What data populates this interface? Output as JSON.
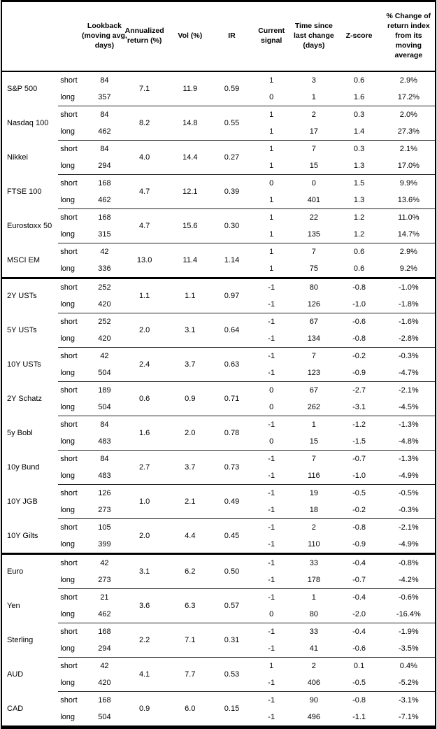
{
  "colors": {
    "background": "#ffffff",
    "text": "#000000",
    "border": "#000000",
    "thin_line": "#222222"
  },
  "table": {
    "columns": {
      "asset": "",
      "side": "",
      "lookback": "Lookback (moving avg, days)",
      "annualized_return": "Annualized return (%)",
      "vol": "Vol (%)",
      "ir": "IR",
      "current_signal": "Current signal",
      "time_since": "Time since last change (days)",
      "z_score": "Z-score",
      "pct_change": "% Change of return index from its moving average"
    },
    "groups": [
      {
        "assets": [
          {
            "name": "S&P 500",
            "annualized_return": "7.1",
            "vol": "11.9",
            "ir": "0.59",
            "rows": [
              {
                "side": "short",
                "lookback": "84",
                "signal": "1",
                "time_since": "3",
                "z_score": "0.6",
                "pct_change": "2.9%"
              },
              {
                "side": "long",
                "lookback": "357",
                "signal": "0",
                "time_since": "1",
                "z_score": "1.6",
                "pct_change": "17.2%"
              }
            ]
          },
          {
            "name": "Nasdaq 100",
            "annualized_return": "8.2",
            "vol": "14.8",
            "ir": "0.55",
            "rows": [
              {
                "side": "short",
                "lookback": "84",
                "signal": "1",
                "time_since": "2",
                "z_score": "0.3",
                "pct_change": "2.0%"
              },
              {
                "side": "long",
                "lookback": "462",
                "signal": "1",
                "time_since": "17",
                "z_score": "1.4",
                "pct_change": "27.3%"
              }
            ]
          },
          {
            "name": "Nikkei",
            "annualized_return": "4.0",
            "vol": "14.4",
            "ir": "0.27",
            "rows": [
              {
                "side": "short",
                "lookback": "84",
                "signal": "1",
                "time_since": "7",
                "z_score": "0.3",
                "pct_change": "2.1%"
              },
              {
                "side": "long",
                "lookback": "294",
                "signal": "1",
                "time_since": "15",
                "z_score": "1.3",
                "pct_change": "17.0%"
              }
            ]
          },
          {
            "name": "FTSE 100",
            "annualized_return": "4.7",
            "vol": "12.1",
            "ir": "0.39",
            "rows": [
              {
                "side": "short",
                "lookback": "168",
                "signal": "0",
                "time_since": "0",
                "z_score": "1.5",
                "pct_change": "9.9%"
              },
              {
                "side": "long",
                "lookback": "462",
                "signal": "1",
                "time_since": "401",
                "z_score": "1.3",
                "pct_change": "13.6%"
              }
            ]
          },
          {
            "name": "Eurostoxx 50",
            "annualized_return": "4.7",
            "vol": "15.6",
            "ir": "0.30",
            "rows": [
              {
                "side": "short",
                "lookback": "168",
                "signal": "1",
                "time_since": "22",
                "z_score": "1.2",
                "pct_change": "11.0%"
              },
              {
                "side": "long",
                "lookback": "315",
                "signal": "1",
                "time_since": "135",
                "z_score": "1.2",
                "pct_change": "14.7%"
              }
            ]
          },
          {
            "name": "MSCI EM",
            "annualized_return": "13.0",
            "vol": "11.4",
            "ir": "1.14",
            "rows": [
              {
                "side": "short",
                "lookback": "42",
                "signal": "1",
                "time_since": "7",
                "z_score": "0.6",
                "pct_change": "2.9%"
              },
              {
                "side": "long",
                "lookback": "336",
                "signal": "1",
                "time_since": "75",
                "z_score": "0.6",
                "pct_change": "9.2%"
              }
            ]
          }
        ]
      },
      {
        "assets": [
          {
            "name": "2Y USTs",
            "annualized_return": "1.1",
            "vol": "1.1",
            "ir": "0.97",
            "rows": [
              {
                "side": "short",
                "lookback": "252",
                "signal": "-1",
                "time_since": "80",
                "z_score": "-0.8",
                "pct_change": "-1.0%"
              },
              {
                "side": "long",
                "lookback": "420",
                "signal": "-1",
                "time_since": "126",
                "z_score": "-1.0",
                "pct_change": "-1.8%"
              }
            ]
          },
          {
            "name": "5Y USTs",
            "annualized_return": "2.0",
            "vol": "3.1",
            "ir": "0.64",
            "rows": [
              {
                "side": "short",
                "lookback": "252",
                "signal": "-1",
                "time_since": "67",
                "z_score": "-0.6",
                "pct_change": "-1.6%"
              },
              {
                "side": "long",
                "lookback": "420",
                "signal": "-1",
                "time_since": "134",
                "z_score": "-0.8",
                "pct_change": "-2.8%"
              }
            ]
          },
          {
            "name": "10Y USTs",
            "annualized_return": "2.4",
            "vol": "3.7",
            "ir": "0.63",
            "rows": [
              {
                "side": "short",
                "lookback": "42",
                "signal": "-1",
                "time_since": "7",
                "z_score": "-0.2",
                "pct_change": "-0.3%"
              },
              {
                "side": "long",
                "lookback": "504",
                "signal": "-1",
                "time_since": "123",
                "z_score": "-0.9",
                "pct_change": "-4.7%"
              }
            ]
          },
          {
            "name": "2Y Schatz",
            "annualized_return": "0.6",
            "vol": "0.9",
            "ir": "0.71",
            "rows": [
              {
                "side": "short",
                "lookback": "189",
                "signal": "0",
                "time_since": "67",
                "z_score": "-2.7",
                "pct_change": "-2.1%"
              },
              {
                "side": "long",
                "lookback": "504",
                "signal": "0",
                "time_since": "262",
                "z_score": "-3.1",
                "pct_change": "-4.5%"
              }
            ]
          },
          {
            "name": "5y Bobl",
            "annualized_return": "1.6",
            "vol": "2.0",
            "ir": "0.78",
            "rows": [
              {
                "side": "short",
                "lookback": "84",
                "signal": "-1",
                "time_since": "1",
                "z_score": "-1.2",
                "pct_change": "-1.3%"
              },
              {
                "side": "long",
                "lookback": "483",
                "signal": "0",
                "time_since": "15",
                "z_score": "-1.5",
                "pct_change": "-4.8%"
              }
            ]
          },
          {
            "name": "10y Bund",
            "annualized_return": "2.7",
            "vol": "3.7",
            "ir": "0.73",
            "rows": [
              {
                "side": "short",
                "lookback": "84",
                "signal": "-1",
                "time_since": "7",
                "z_score": "-0.7",
                "pct_change": "-1.3%"
              },
              {
                "side": "long",
                "lookback": "483",
                "signal": "-1",
                "time_since": "116",
                "z_score": "-1.0",
                "pct_change": "-4.9%"
              }
            ]
          },
          {
            "name": "10Y JGB",
            "annualized_return": "1.0",
            "vol": "2.1",
            "ir": "0.49",
            "rows": [
              {
                "side": "short",
                "lookback": "126",
                "signal": "-1",
                "time_since": "19",
                "z_score": "-0.5",
                "pct_change": "-0.5%"
              },
              {
                "side": "long",
                "lookback": "273",
                "signal": "-1",
                "time_since": "18",
                "z_score": "-0.2",
                "pct_change": "-0.3%"
              }
            ]
          },
          {
            "name": "10Y Gilts",
            "annualized_return": "2.0",
            "vol": "4.4",
            "ir": "0.45",
            "rows": [
              {
                "side": "short",
                "lookback": "105",
                "signal": "-1",
                "time_since": "2",
                "z_score": "-0.8",
                "pct_change": "-2.1%"
              },
              {
                "side": "long",
                "lookback": "399",
                "signal": "-1",
                "time_since": "110",
                "z_score": "-0.9",
                "pct_change": "-4.9%"
              }
            ]
          }
        ]
      },
      {
        "assets": [
          {
            "name": "Euro",
            "annualized_return": "3.1",
            "vol": "6.2",
            "ir": "0.50",
            "rows": [
              {
                "side": "short",
                "lookback": "42",
                "signal": "-1",
                "time_since": "33",
                "z_score": "-0.4",
                "pct_change": "-0.8%"
              },
              {
                "side": "long",
                "lookback": "273",
                "signal": "-1",
                "time_since": "178",
                "z_score": "-0.7",
                "pct_change": "-4.2%"
              }
            ]
          },
          {
            "name": "Yen",
            "annualized_return": "3.6",
            "vol": "6.3",
            "ir": "0.57",
            "rows": [
              {
                "side": "short",
                "lookback": "21",
                "signal": "-1",
                "time_since": "1",
                "z_score": "-0.4",
                "pct_change": "-0.6%"
              },
              {
                "side": "long",
                "lookback": "462",
                "signal": "0",
                "time_since": "80",
                "z_score": "-2.0",
                "pct_change": "-16.4%"
              }
            ]
          },
          {
            "name": "Sterling",
            "annualized_return": "2.2",
            "vol": "7.1",
            "ir": "0.31",
            "rows": [
              {
                "side": "short",
                "lookback": "168",
                "signal": "-1",
                "time_since": "33",
                "z_score": "-0.4",
                "pct_change": "-1.9%"
              },
              {
                "side": "long",
                "lookback": "294",
                "signal": "-1",
                "time_since": "41",
                "z_score": "-0.6",
                "pct_change": "-3.5%"
              }
            ]
          },
          {
            "name": "AUD",
            "annualized_return": "4.1",
            "vol": "7.7",
            "ir": "0.53",
            "rows": [
              {
                "side": "short",
                "lookback": "42",
                "signal": "1",
                "time_since": "2",
                "z_score": "0.1",
                "pct_change": "0.4%"
              },
              {
                "side": "long",
                "lookback": "420",
                "signal": "-1",
                "time_since": "406",
                "z_score": "-0.5",
                "pct_change": "-5.2%"
              }
            ]
          },
          {
            "name": "CAD",
            "annualized_return": "0.9",
            "vol": "6.0",
            "ir": "0.15",
            "rows": [
              {
                "side": "short",
                "lookback": "168",
                "signal": "-1",
                "time_since": "90",
                "z_score": "-0.8",
                "pct_change": "-3.1%"
              },
              {
                "side": "long",
                "lookback": "504",
                "signal": "-1",
                "time_since": "496",
                "z_score": "-1.1",
                "pct_change": "-7.1%"
              }
            ]
          }
        ]
      }
    ]
  }
}
